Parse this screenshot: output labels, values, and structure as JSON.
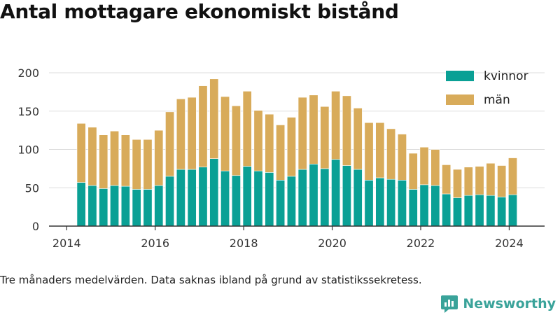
{
  "title": "Antal mottagare ekonomiskt bistånd",
  "footnote": "Tre månaders medelvärden. Data saknas ibland på grund av statistikssekretess.",
  "brand": {
    "name": "Newsworthy",
    "icon": "newsworthy-logo-icon",
    "color": "#3aa39a"
  },
  "colors": {
    "kvinnor": "#0aa095",
    "man": "#d8ab5a",
    "grid": "#dddddd",
    "axis": "#333333"
  },
  "chart_data": {
    "type": "bar",
    "stacked": true,
    "title": "Antal mottagare ekonomiskt bistånd",
    "xlabel": "",
    "ylabel": "",
    "xlim": [
      2013.6,
      2024.8
    ],
    "ylim": [
      0,
      200
    ],
    "yticks": [
      0,
      50,
      100,
      150,
      200
    ],
    "xticks": [
      2014,
      2016,
      2018,
      2020,
      2022,
      2024
    ],
    "grid": true,
    "legend_position": "top-right",
    "x": [
      2014.33,
      2014.58,
      2014.83,
      2015.08,
      2015.33,
      2015.58,
      2015.83,
      2016.08,
      2016.33,
      2016.58,
      2016.83,
      2017.08,
      2017.33,
      2017.58,
      2017.83,
      2018.08,
      2018.33,
      2018.58,
      2018.83,
      2019.08,
      2019.33,
      2019.58,
      2019.83,
      2020.08,
      2020.33,
      2020.58,
      2020.83,
      2021.08,
      2021.33,
      2021.58,
      2021.83,
      2022.08,
      2022.33,
      2022.58,
      2022.83,
      2023.08,
      2023.33,
      2023.58,
      2023.83,
      2024.08
    ],
    "series": [
      {
        "name": "kvinnor",
        "color": "#0aa095",
        "values": [
          57,
          53,
          49,
          53,
          52,
          48,
          48,
          53,
          65,
          74,
          74,
          77,
          88,
          72,
          66,
          78,
          72,
          70,
          60,
          65,
          74,
          81,
          75,
          87,
          79,
          74,
          60,
          63,
          61,
          60,
          48,
          54,
          53,
          42,
          37,
          40,
          41,
          40,
          38,
          41
        ]
      },
      {
        "name": "män",
        "color": "#d8ab5a",
        "values": [
          77,
          76,
          70,
          71,
          67,
          65,
          65,
          72,
          84,
          92,
          94,
          106,
          104,
          97,
          91,
          98,
          79,
          76,
          72,
          77,
          94,
          90,
          81,
          89,
          91,
          80,
          75,
          72,
          66,
          60,
          47,
          49,
          47,
          38,
          37,
          37,
          37,
          42,
          41,
          48
        ]
      }
    ]
  }
}
